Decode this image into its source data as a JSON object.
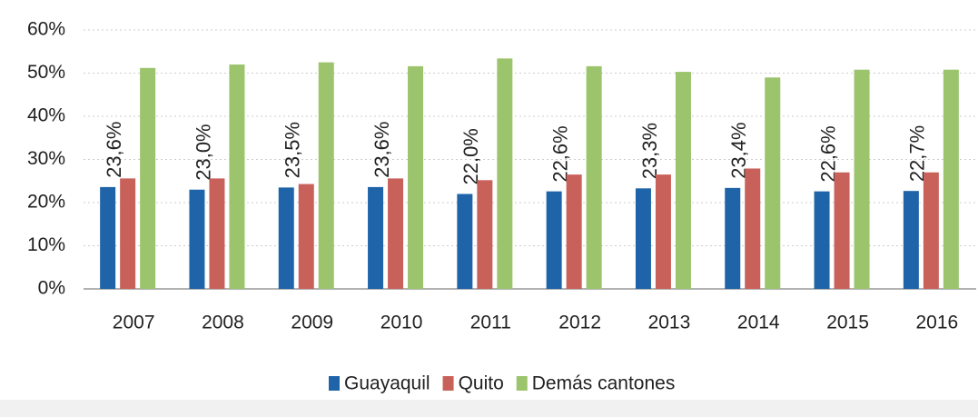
{
  "chart_data": {
    "type": "bar",
    "categories": [
      "2007",
      "2008",
      "2009",
      "2010",
      "2011",
      "2012",
      "2013",
      "2014",
      "2015",
      "2016"
    ],
    "series": [
      {
        "name": "Guayaquil",
        "color": "#1f64a8",
        "values": [
          23.6,
          23.0,
          23.5,
          23.6,
          22.0,
          22.6,
          23.3,
          23.4,
          22.6,
          22.7
        ],
        "value_labels": [
          "23,6%",
          "23,0%",
          "23,5%",
          "23,6%",
          "22,0%",
          "22,6%",
          "23,3%",
          "23,4%",
          "22,6%",
          "22,7%"
        ]
      },
      {
        "name": "Quito",
        "color": "#c9615b",
        "values": [
          25.6,
          25.6,
          24.3,
          25.6,
          25.2,
          26.5,
          26.5,
          27.9,
          27.0,
          27.0
        ]
      },
      {
        "name": "Demás cantones",
        "color": "#9bc46c",
        "values": [
          51.2,
          52.0,
          52.5,
          51.6,
          53.4,
          51.6,
          50.3,
          49.0,
          50.8,
          50.8
        ]
      }
    ],
    "ylim": [
      0,
      60
    ],
    "yticks": [
      {
        "value": 0,
        "label": "0%"
      },
      {
        "value": 10,
        "label": "10%"
      },
      {
        "value": 20,
        "label": "20%"
      },
      {
        "value": 30,
        "label": "30%"
      },
      {
        "value": 40,
        "label": "40%"
      },
      {
        "value": 50,
        "label": "50%"
      },
      {
        "value": 60,
        "label": "60%"
      }
    ],
    "grid": true,
    "legend": "bottom"
  }
}
